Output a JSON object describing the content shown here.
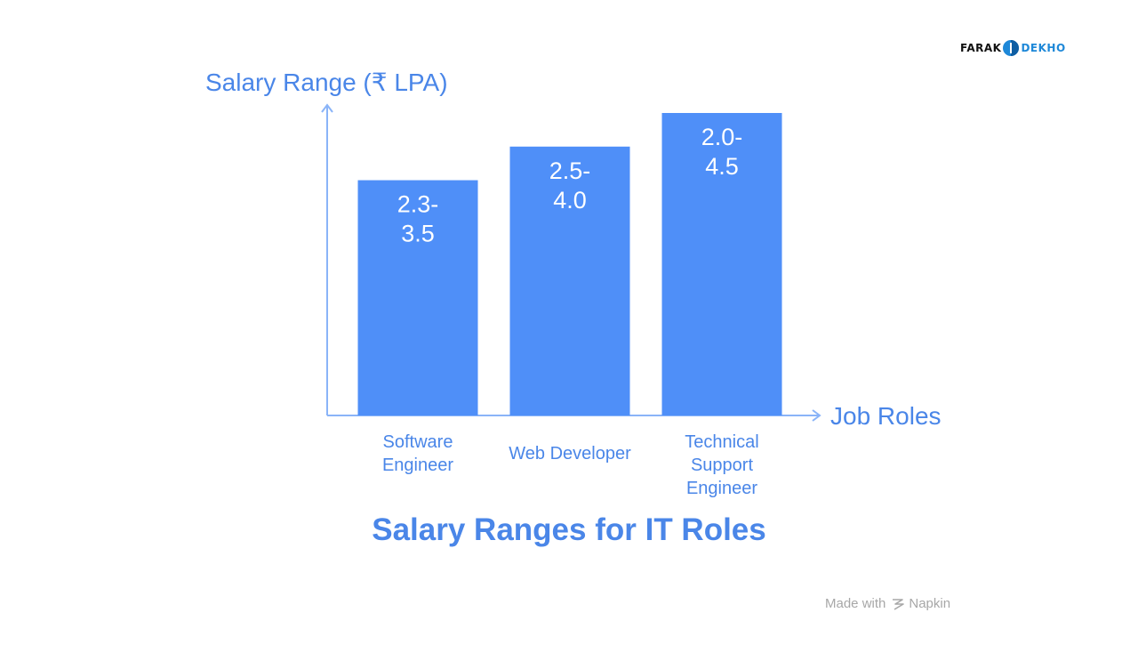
{
  "brand": {
    "part1": "FARAK",
    "part2": "DEKHO"
  },
  "footer": {
    "made_with": "Made with",
    "tool": "Napkin"
  },
  "chart_data": {
    "type": "bar",
    "title": "Salary Ranges for IT Roles",
    "ylabel": "Salary Range (₹ LPA)",
    "xlabel": "Job Roles",
    "categories": [
      [
        "Software",
        "Engineer"
      ],
      [
        "Web Developer"
      ],
      [
        "Technical",
        "Support",
        "Engineer"
      ]
    ],
    "ranges": [
      [
        2.3,
        3.5
      ],
      [
        2.5,
        4.0
      ],
      [
        2.0,
        4.5
      ]
    ],
    "data_labels": [
      [
        "2.3-",
        "3.5"
      ],
      [
        "2.5-",
        "4.0"
      ],
      [
        "2.0-",
        "4.5"
      ]
    ],
    "grid": false,
    "colors": {
      "bar": "#4f8ff8",
      "axis": "#8ab4f8",
      "text": "#4a86e8",
      "bar_label": "#ffffff"
    }
  }
}
